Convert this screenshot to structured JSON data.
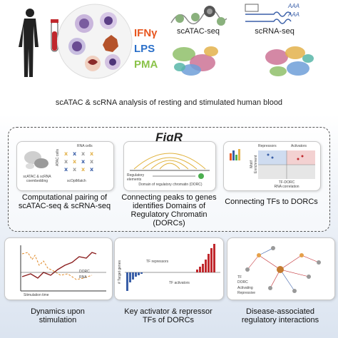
{
  "stimuli": [
    "IFNγ",
    "LPS",
    "PMA"
  ],
  "stimuli_colors": [
    "#e8561f",
    "#2a6fc9",
    "#8bc34a"
  ],
  "top_labels": {
    "atac": "scATAC-seq",
    "rna": "scRNA-seq",
    "aaa1": "AAA",
    "aaa2": "AAA"
  },
  "caption": "scATAC & scRNA analysis of resting and stimulated human blood",
  "figr_title": "FigR",
  "panels": {
    "pairing": {
      "label": "Computational pairing of scATAC-seq & scRNA-seq",
      "label_line1": "Computational pairing of",
      "label_line2": "scATAC-seq & scRNA-seq",
      "rna_cells": "RNA cells",
      "atac_cells": "ATAC cells",
      "coembedding": "scATAC & scRNA coembedding",
      "coembed_line1": "scATAC & scRNA",
      "coembed_line2": "coembedding",
      "optmatch": "scOptMatch"
    },
    "dorc": {
      "label_line1": "Connecting peaks to genes",
      "label_line2": "identifies Domains of",
      "label_line3": "Regulatory Chromatin (DORCs)",
      "reg_elements_line1": "Regulatory",
      "reg_elements_line2": "elements",
      "domain": "Domain of regulatory chromatin (DORC)"
    },
    "tf": {
      "label": "Connecting TFs to DORCs",
      "repressors": "Repressors",
      "activators": "Activators",
      "yaxis_line1": "Motif",
      "yaxis_line2": "Enrichment",
      "xaxis_line1": "TF-DORC",
      "xaxis_line2": "RNA correlation"
    },
    "dynamics": {
      "label_line1": "Dynamics upon",
      "label_line2": "stimulation",
      "legend_dorc": "DORC",
      "legend_rna": "RNA",
      "xaxis": "Stimulation time"
    },
    "activator": {
      "label_line1": "Key activator & repressor",
      "label_line2": "TFs of DORCs",
      "yaxis": "# Target genes",
      "repressors": "TF repressors",
      "activators": "TF activators"
    },
    "disease": {
      "label_line1": "Disease-associated",
      "label_line2": "regulatory interactions",
      "legend_tf": "TF",
      "legend_dorc": "DORC",
      "legend_activating": "Activating",
      "legend_repressive": "Repressive"
    }
  }
}
